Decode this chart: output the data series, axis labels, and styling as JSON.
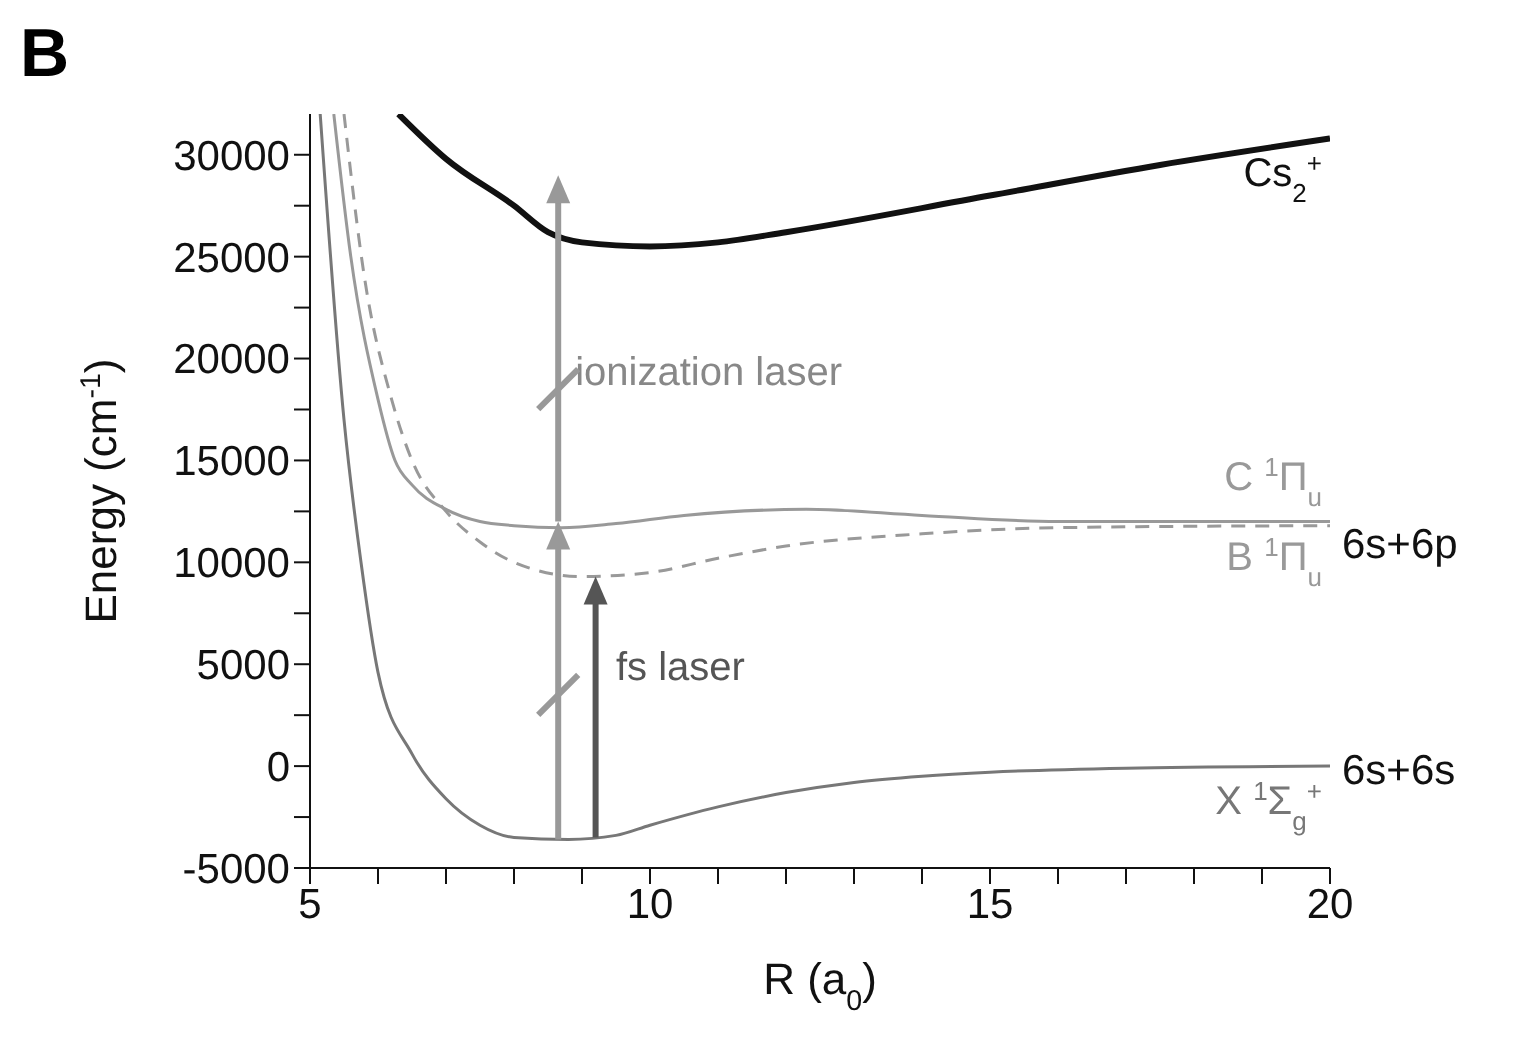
{
  "chart_data": {
    "type": "line",
    "title": "B",
    "xlabel": "R (a$_{0}$)",
    "ylabel": "Energy (cm$^{-1}$)",
    "xlim": [
      5,
      20
    ],
    "ylim": [
      -5000,
      32000
    ],
    "xticks": [
      5,
      {
        "value": 6,
        "label": null
      },
      {
        "value": 7,
        "label": null
      },
      {
        "value": 8,
        "label": null
      },
      {
        "value": 9,
        "label": null
      },
      10,
      {
        "value": 11,
        "label": null
      },
      {
        "value": 12,
        "label": null
      },
      {
        "value": 13,
        "label": null
      },
      {
        "value": 14,
        "label": null
      },
      15,
      {
        "value": 16,
        "label": null
      },
      {
        "value": 17,
        "label": null
      },
      {
        "value": 18,
        "label": null
      },
      {
        "value": 19,
        "label": null
      },
      20
    ],
    "yticks": [
      -5000,
      {
        "value": -2500,
        "label": null
      },
      0,
      {
        "value": 2500,
        "label": null
      },
      5000,
      {
        "value": 7500,
        "label": null
      },
      10000,
      {
        "value": 12500,
        "label": null
      },
      15000,
      {
        "value": 17500,
        "label": null
      },
      20000,
      {
        "value": 22500,
        "label": null
      },
      25000,
      {
        "value": 27500,
        "label": null
      },
      30000
    ],
    "grid": false,
    "legend": false,
    "marker": "none",
    "series": [
      {
        "name": "Cs$_{2}$$^{+}$",
        "color": "#111111",
        "line_style": "solid",
        "x": [
          6.3,
          7,
          8,
          8.5,
          9,
          10,
          11,
          12,
          15,
          17.5,
          20
        ],
        "values": [
          32000,
          29800,
          27500,
          26200,
          25700,
          25500,
          25700,
          26200,
          28000,
          29500,
          30800
        ]
      },
      {
        "name": "C $^{1}$Π$_{u}$",
        "color": "#999999",
        "line_style": "solid",
        "x": [
          5.35,
          5.6,
          6,
          6.25,
          6.5,
          7,
          7.5,
          8,
          8.7,
          9.5,
          10.5,
          12.3,
          14,
          16,
          20
        ],
        "values": [
          32000,
          25000,
          18000,
          15000,
          13800,
          12600,
          12000,
          11800,
          11700,
          11900,
          12300,
          12600,
          12300,
          12000,
          12000
        ]
      },
      {
        "name": "B $^{1}$Π$_{u}$",
        "color": "#999999",
        "line_style": "dashed",
        "x": [
          5.5,
          5.8,
          6.2,
          6.5,
          7,
          7.5,
          8,
          9,
          10,
          11,
          12,
          14,
          16,
          20
        ],
        "values": [
          32000,
          24000,
          18000,
          15000,
          12500,
          11000,
          10000,
          9300,
          9500,
          10200,
          10800,
          11400,
          11700,
          11800
        ]
      },
      {
        "name": "X $^{1}$Σ$_{g}$$^{+}$",
        "color": "#777777",
        "line_style": "solid",
        "x": [
          5.15,
          5.5,
          5.75,
          6,
          6.5,
          7,
          7.5,
          8,
          8.8,
          9.5,
          10,
          11,
          12,
          13,
          14,
          15,
          17,
          20
        ],
        "values": [
          32000,
          17000,
          10000,
          4600,
          600,
          -1600,
          -2900,
          -3500,
          -3600,
          -3400,
          -2900,
          -2000,
          -1300,
          -800,
          -500,
          -300,
          -100,
          0
        ]
      }
    ],
    "annotations": [
      "ionization laser",
      "fs laser",
      "6s+6p",
      "6s+6s"
    ]
  }
}
